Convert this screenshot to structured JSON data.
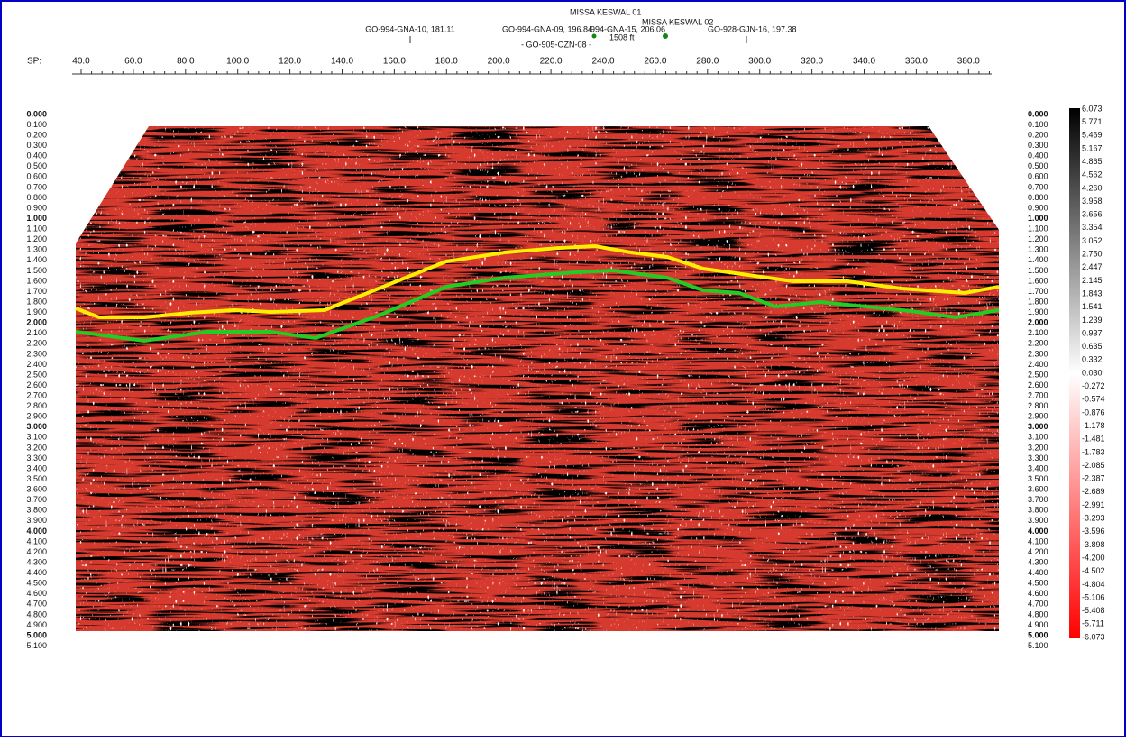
{
  "wells": [
    "GO-994-GNA-10, 181.11",
    "GO-994-GNA-09, 196.84",
    "994-GNA-15, 206.06",
    "MISSA KESWAL 01",
    "MISSA KESWAL 02",
    "GO-928-GJN-16, 197.38",
    "- GO-905-OZN-08 -",
    "1508 ft"
  ],
  "sp_axis": {
    "label": "SP:",
    "ticks": [
      "40.0",
      "60.0",
      "80.0",
      "100.0",
      "120.0",
      "140.0",
      "160.0",
      "180.0",
      "200.0",
      "220.0",
      "240.0",
      "260.0",
      "280.0",
      "300.0",
      "320.0",
      "340.0",
      "360.0",
      "380.0"
    ]
  },
  "time_axis": {
    "labels": [
      "0.000",
      "0.100",
      "0.200",
      "0.300",
      "0.400",
      "0.500",
      "0.600",
      "0.700",
      "0.800",
      "0.900",
      "1.000",
      "1.100",
      "1.200",
      "1.300",
      "1.400",
      "1.500",
      "1.600",
      "1.700",
      "1.800",
      "1.900",
      "2.000",
      "2.100",
      "2.200",
      "2.300",
      "2.400",
      "2.500",
      "2.600",
      "2.700",
      "2.800",
      "2.900",
      "3.000",
      "3.100",
      "3.200",
      "3.300",
      "3.400",
      "3.500",
      "3.600",
      "3.700",
      "3.800",
      "3.900",
      "4.000",
      "4.100",
      "4.200",
      "4.300",
      "4.400",
      "4.500",
      "4.600",
      "4.700",
      "4.800",
      "4.900",
      "5.000",
      "5.100"
    ]
  },
  "colorbar": {
    "labels": [
      "6.073",
      "5.771",
      "5.469",
      "5.167",
      "4.865",
      "4.562",
      "4.260",
      "3.958",
      "3.656",
      "3.354",
      "3.052",
      "2.750",
      "2.447",
      "2.145",
      "1.843",
      "1.541",
      "1.239",
      "0.937",
      "0.635",
      "0.332",
      "0.030",
      "-0.272",
      "-0.574",
      "-0.876",
      "-1.178",
      "-1.481",
      "-1.783",
      "-2.085",
      "-2.387",
      "-2.689",
      "-2.991",
      "-3.293",
      "-3.596",
      "-3.898",
      "-4.200",
      "-4.502",
      "-4.804",
      "-5.106",
      "-5.408",
      "-5.711",
      "-6.073"
    ]
  }
}
